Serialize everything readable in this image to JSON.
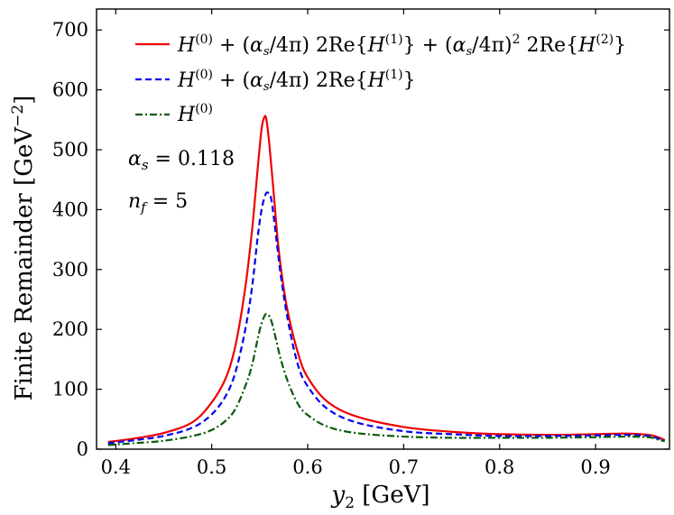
{
  "chart_data": {
    "type": "line",
    "xlabel": "y2 [GeV]",
    "ylabel": "Finite Remainder [GeV⁻²]",
    "xlim": [
      0.38,
      0.977
    ],
    "ylim": [
      0,
      735
    ],
    "xticks": [
      0.4,
      0.5,
      0.6,
      0.7,
      0.8,
      0.9
    ],
    "yticks": [
      0,
      100,
      200,
      300,
      400,
      500,
      600,
      700
    ],
    "xtick_labels": [
      "0.4",
      "0.5",
      "0.6",
      "0.7",
      "0.8",
      "0.9"
    ],
    "ytick_labels": [
      "0",
      "100",
      "200",
      "300",
      "400",
      "500",
      "600",
      "700"
    ],
    "legend_position": "top-left",
    "grid": false,
    "annotations": [
      "αs = 0.118",
      "nf = 5"
    ],
    "series": [
      {
        "name": "H(0) + (αs/4π) 2Re{H(1)} + (αs/4π)² 2Re{H(2)}",
        "color": "#ee0000",
        "style": "solid",
        "x": [
          0.392,
          0.42,
          0.45,
          0.48,
          0.5,
          0.515,
          0.525,
          0.535,
          0.542,
          0.548,
          0.552,
          0.555,
          0.557,
          0.56,
          0.565,
          0.57,
          0.578,
          0.59,
          0.6,
          0.62,
          0.65,
          0.7,
          0.75,
          0.8,
          0.85,
          0.9,
          0.93,
          0.955,
          0.965,
          0.972
        ],
        "y": [
          12,
          18,
          27,
          45,
          78,
          120,
          175,
          270,
          365,
          470,
          535,
          555,
          550,
          510,
          420,
          330,
          240,
          160,
          120,
          80,
          55,
          37,
          29,
          25,
          24,
          25,
          26,
          24,
          20,
          15
        ]
      },
      {
        "name": "H(0) + (αs/4π) 2Re{H(1)}",
        "color": "#0000ee",
        "style": "dashed",
        "x": [
          0.392,
          0.42,
          0.45,
          0.48,
          0.5,
          0.515,
          0.525,
          0.535,
          0.542,
          0.548,
          0.552,
          0.556,
          0.559,
          0.562,
          0.566,
          0.572,
          0.58,
          0.59,
          0.6,
          0.62,
          0.65,
          0.7,
          0.75,
          0.8,
          0.85,
          0.9,
          0.93,
          0.955,
          0.965,
          0.972
        ],
        "y": [
          10,
          15,
          22,
          36,
          58,
          90,
          130,
          200,
          270,
          355,
          400,
          425,
          428,
          418,
          370,
          290,
          210,
          140,
          105,
          68,
          45,
          30,
          25,
          22,
          22,
          23,
          24,
          22,
          18,
          14
        ]
      },
      {
        "name": "H(0)",
        "color": "#0a5a0a",
        "style": "dashdot",
        "x": [
          0.392,
          0.42,
          0.45,
          0.48,
          0.5,
          0.515,
          0.525,
          0.535,
          0.542,
          0.548,
          0.552,
          0.556,
          0.559,
          0.562,
          0.566,
          0.572,
          0.58,
          0.59,
          0.6,
          0.62,
          0.65,
          0.7,
          0.75,
          0.8,
          0.85,
          0.9,
          0.93,
          0.955,
          0.965,
          0.972
        ],
        "y": [
          7,
          10,
          14,
          22,
          32,
          48,
          68,
          105,
          140,
          185,
          210,
          225,
          224,
          215,
          190,
          150,
          110,
          75,
          57,
          38,
          27,
          21,
          19,
          19,
          19,
          20,
          21,
          20,
          16,
          13
        ]
      }
    ]
  }
}
